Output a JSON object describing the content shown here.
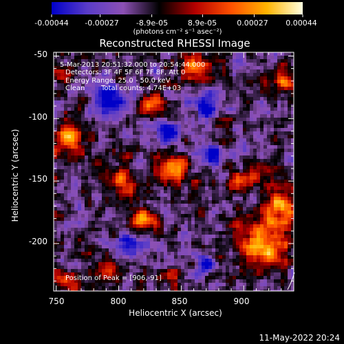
{
  "chart_data": {
    "type": "heatmap",
    "title": "Reconstructed RHESSI Image",
    "xlabel": "Heliocentric X (arcsec)",
    "ylabel": "Heliocentric Y (arcsec)",
    "xlim": [
      748,
      940
    ],
    "ylim": [
      -238,
      -47
    ],
    "x_ticks": [
      750,
      800,
      850,
      900
    ],
    "y_ticks": [
      -50,
      -100,
      -150,
      -200
    ],
    "colorbar": {
      "ticks": [
        "-0.00044",
        "-0.00027",
        "-8.9e-05",
        "8.9e-05",
        "0.00027",
        "0.00044"
      ],
      "tick_values": [
        -0.00044,
        -0.00027,
        -8.9e-05,
        8.9e-05,
        0.00027,
        0.00044
      ],
      "range": [
        -0.00044,
        0.00044
      ],
      "unit_label": "(photons cm⁻² s⁻¹ asec⁻²)",
      "colormap": [
        "#0000c8",
        "#5a3cc8",
        "#8c50b4",
        "#000000",
        "#b40000",
        "#ff5000",
        "#ffb400",
        "#ffffe0"
      ]
    },
    "annotations": [
      "5-Mar-2013 20:51:32.000 to 20:54:44.000",
      "Detectors: 3F 4F 5F 6F 7F 8F, Att 0",
      "Energy Range: 25.0 - 50.0 keV",
      "Clean",
      "Total counts: 4.74E+03",
      "Position of Peak = [906,-91]"
    ],
    "peak": {
      "x": 906,
      "y": -91
    },
    "hot_regions": [
      {
        "x": 915,
        "y": -200,
        "radius": 20,
        "level": 1.0
      },
      {
        "x": 930,
        "y": -170,
        "radius": 14,
        "level": 0.85
      },
      {
        "x": 760,
        "y": -115,
        "radius": 12,
        "level": 0.9
      },
      {
        "x": 843,
        "y": -140,
        "radius": 12,
        "level": 0.85
      },
      {
        "x": 860,
        "y": -60,
        "radius": 12,
        "level": 0.75
      },
      {
        "x": 830,
        "y": -90,
        "radius": 10,
        "level": 0.7
      },
      {
        "x": 803,
        "y": -150,
        "radius": 11,
        "level": 0.75
      },
      {
        "x": 820,
        "y": -180,
        "radius": 10,
        "level": 0.75
      },
      {
        "x": 900,
        "y": -150,
        "radius": 10,
        "level": 0.65
      },
      {
        "x": 760,
        "y": -230,
        "radius": 9,
        "level": 0.7
      },
      {
        "x": 790,
        "y": -220,
        "radius": 8,
        "level": 0.6
      },
      {
        "x": 840,
        "y": -225,
        "radius": 8,
        "level": 0.55
      },
      {
        "x": 755,
        "y": -65,
        "radius": 8,
        "level": 0.6
      },
      {
        "x": 935,
        "y": -70,
        "radius": 10,
        "level": 0.7
      }
    ],
    "cold_regions": [
      {
        "x": 793,
        "y": -85,
        "radius": 12,
        "level": 0.9
      },
      {
        "x": 840,
        "y": -110,
        "radius": 10,
        "level": 0.8
      },
      {
        "x": 870,
        "y": -90,
        "radius": 10,
        "level": 0.85
      },
      {
        "x": 875,
        "y": -130,
        "radius": 9,
        "level": 0.7
      },
      {
        "x": 805,
        "y": -200,
        "radius": 9,
        "level": 0.7
      },
      {
        "x": 870,
        "y": -215,
        "radius": 8,
        "level": 0.6
      }
    ]
  },
  "footer": {
    "timestamp": "11-May-2022 20:24"
  }
}
